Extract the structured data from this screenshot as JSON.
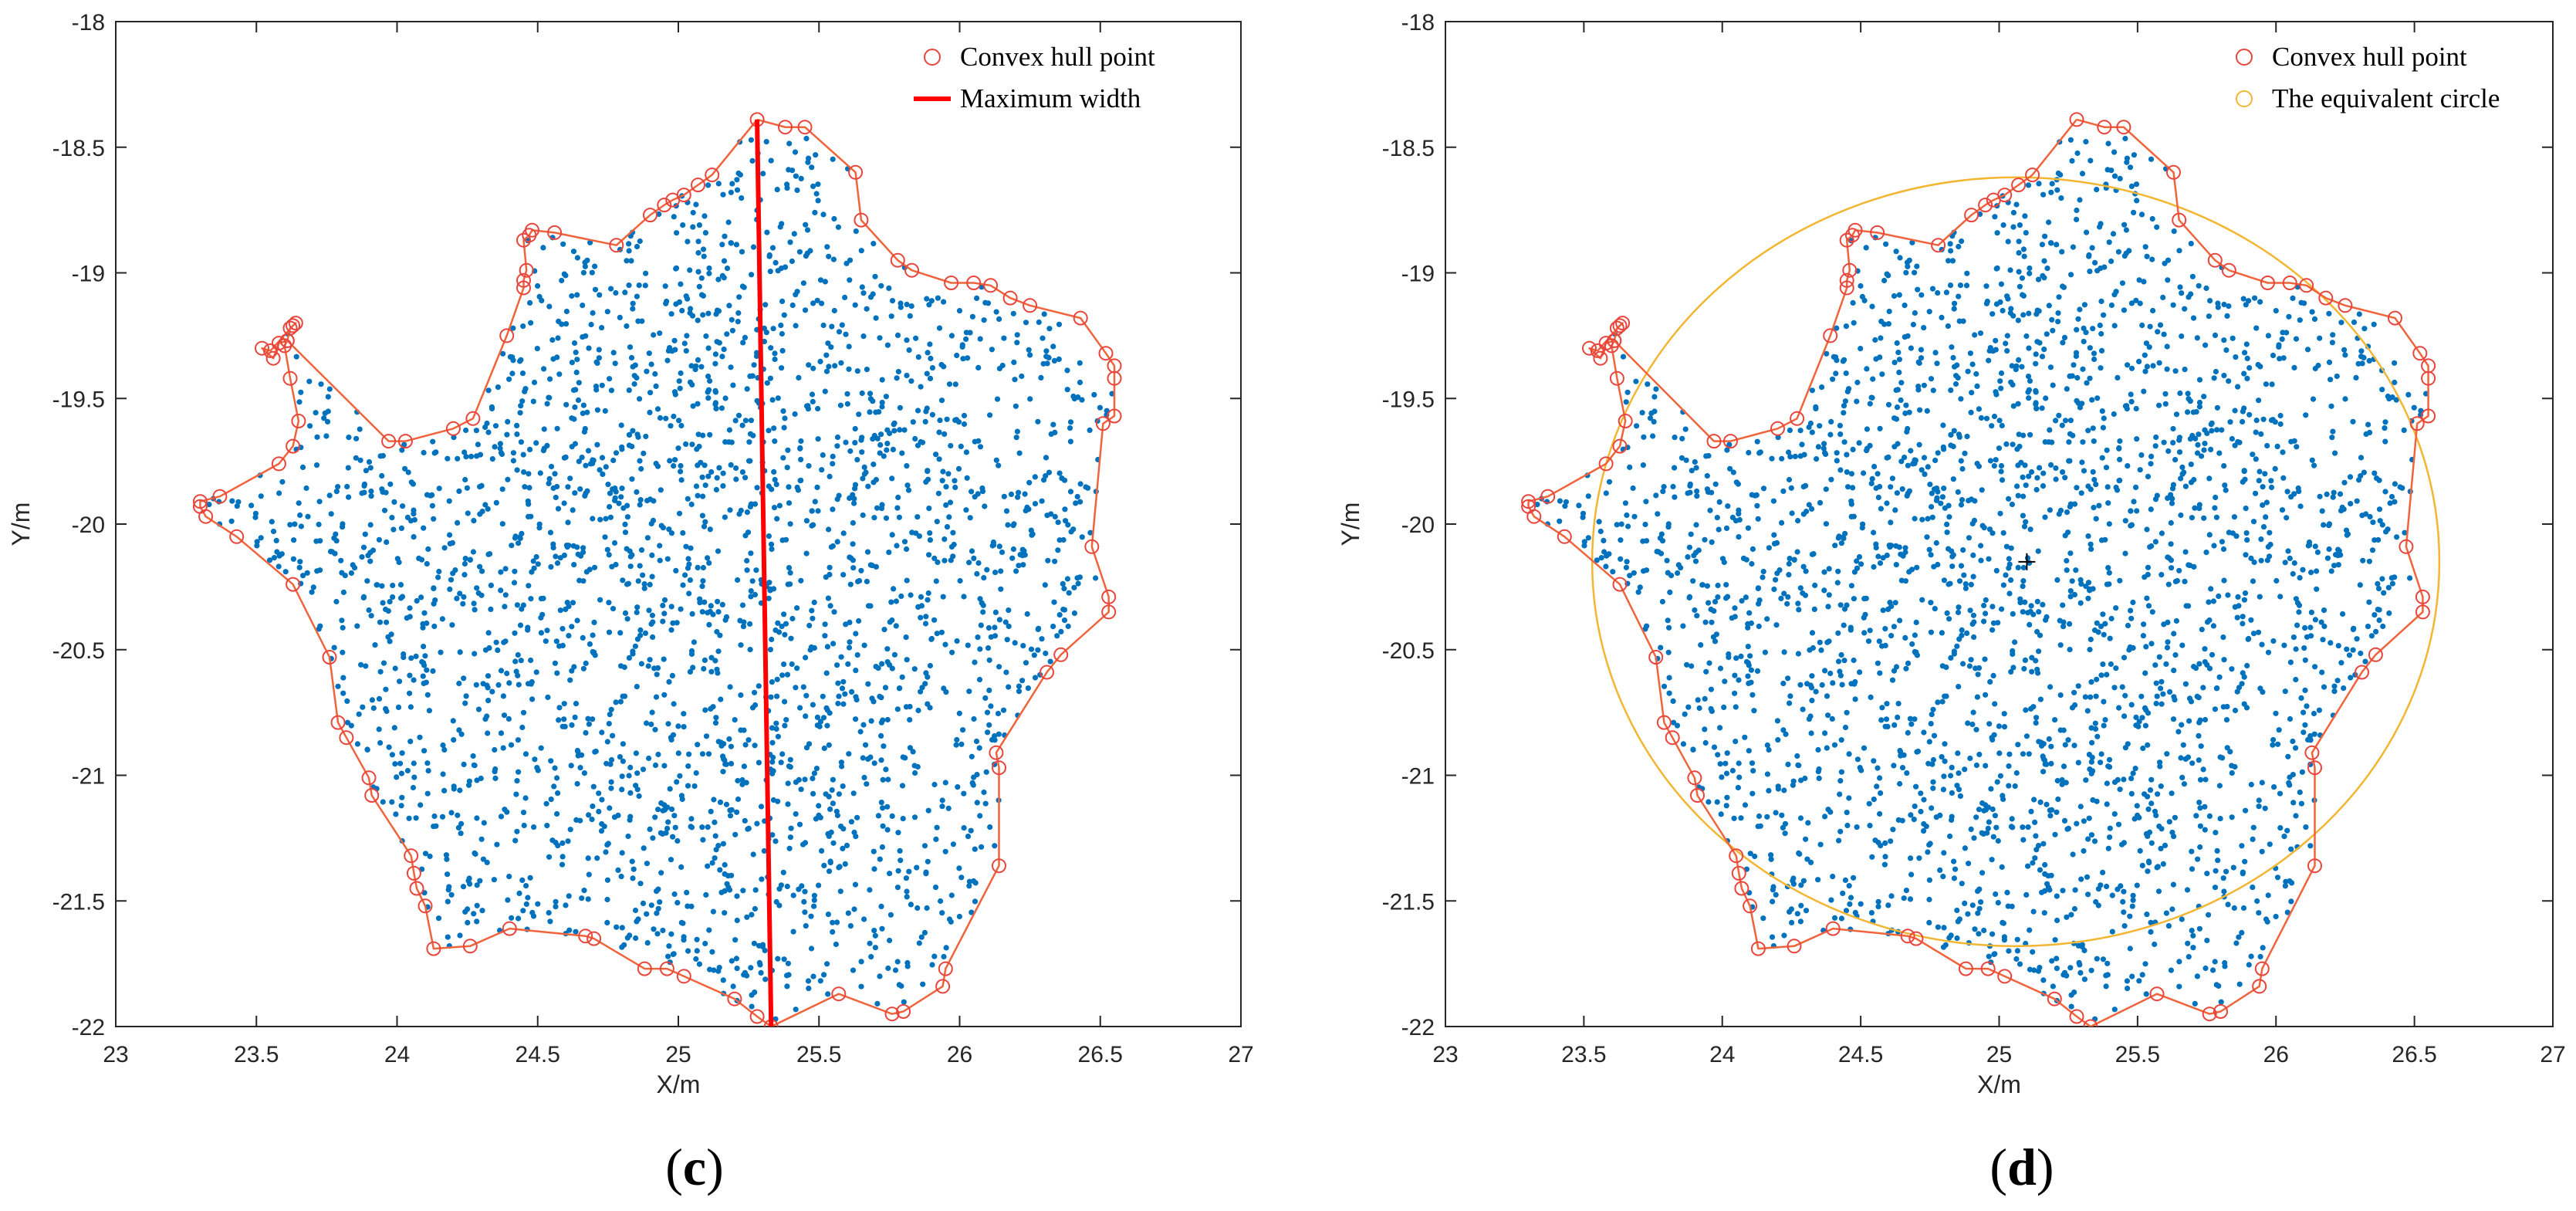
{
  "colors": {
    "points": "#0072BD",
    "hull": "#F0643C",
    "hull_marker": "#E8453C",
    "max_width": "#FF0000",
    "circle": "#F2B632",
    "axis": "#262626"
  },
  "chart_data": [
    {
      "type": "scatter",
      "panel": "c",
      "panel_label": {
        "open": "(",
        "letter": "c",
        "close": ")"
      },
      "xlabel": "X/m",
      "ylabel": "Y/m",
      "xlim": [
        23,
        27
      ],
      "ylim": [
        -22,
        -18
      ],
      "xticks": [
        23,
        23.5,
        24,
        24.5,
        25,
        25.5,
        26,
        26.5,
        27
      ],
      "xtick_labels": [
        "23",
        "23.5",
        "24",
        "24.5",
        "25",
        "25.5",
        "26",
        "26.5",
        "27"
      ],
      "yticks": [
        -18,
        -18.5,
        -19,
        -19.5,
        -20,
        -20.5,
        -21,
        -21.5,
        -22
      ],
      "ytick_labels": [
        "-18",
        "-18.5",
        "-19",
        "-19.5",
        "-20",
        "-20.5",
        "-21",
        "-21.5",
        "-22"
      ],
      "legend_position": "top-right",
      "legend": [
        {
          "label": "Convex hull point",
          "marker": "circle"
        },
        {
          "label": "Maximum width",
          "marker": "line"
        }
      ],
      "max_width_line": {
        "x": [
          25.28,
          25.33
        ],
        "y": [
          -18.39,
          -22.0
        ]
      }
    },
    {
      "type": "scatter",
      "panel": "d",
      "panel_label": {
        "open": "(",
        "letter": "d",
        "close": ")"
      },
      "xlabel": "X/m",
      "ylabel": "Y/m",
      "xlim": [
        23,
        27
      ],
      "ylim": [
        -22,
        -18
      ],
      "xticks": [
        23,
        23.5,
        24,
        24.5,
        25,
        25.5,
        26,
        26.5,
        27
      ],
      "xtick_labels": [
        "23",
        "23.5",
        "24",
        "24.5",
        "25",
        "25.5",
        "26",
        "26.5",
        "27"
      ],
      "yticks": [
        -18,
        -18.5,
        -19,
        -19.5,
        -20,
        -20.5,
        -21,
        -21.5,
        -22
      ],
      "ytick_labels": [
        "-18",
        "-18.5",
        "-19",
        "-19.5",
        "-20",
        "-20.5",
        "-21",
        "-21.5",
        "-22"
      ],
      "legend_position": "top-right",
      "legend": [
        {
          "label": "Convex hull point",
          "marker": "circle"
        },
        {
          "label": "The equivalent circle",
          "marker": "circle"
        }
      ],
      "equivalent_circle": {
        "cx": 25.06,
        "cy": -20.15,
        "r": 1.53
      },
      "center_marker": {
        "x": 25.1,
        "y": -20.15
      }
    }
  ],
  "hull": [
    [
      25.28,
      -18.39
    ],
    [
      25.38,
      -18.42
    ],
    [
      25.45,
      -18.42
    ],
    [
      25.63,
      -18.6
    ],
    [
      25.65,
      -18.79
    ],
    [
      25.78,
      -18.95
    ],
    [
      25.83,
      -18.99
    ],
    [
      25.97,
      -19.04
    ],
    [
      26.05,
      -19.04
    ],
    [
      26.11,
      -19.05
    ],
    [
      26.18,
      -19.1
    ],
    [
      26.25,
      -19.13
    ],
    [
      26.43,
      -19.18
    ],
    [
      26.52,
      -19.32
    ],
    [
      26.55,
      -19.37
    ],
    [
      26.55,
      -19.42
    ],
    [
      26.55,
      -19.57
    ],
    [
      26.51,
      -19.6
    ],
    [
      26.47,
      -20.09
    ],
    [
      26.53,
      -20.29
    ],
    [
      26.53,
      -20.35
    ],
    [
      26.36,
      -20.52
    ],
    [
      26.31,
      -20.59
    ],
    [
      26.13,
      -20.91
    ],
    [
      26.14,
      -20.97
    ],
    [
      26.14,
      -21.36
    ],
    [
      25.95,
      -21.77
    ],
    [
      25.94,
      -21.84
    ],
    [
      25.8,
      -21.94
    ],
    [
      25.76,
      -21.95
    ],
    [
      25.57,
      -21.87
    ],
    [
      25.33,
      -22.0
    ],
    [
      25.28,
      -21.96
    ],
    [
      25.2,
      -21.89
    ],
    [
      25.02,
      -21.8
    ],
    [
      24.96,
      -21.77
    ],
    [
      24.88,
      -21.77
    ],
    [
      24.7,
      -21.65
    ],
    [
      24.67,
      -21.64
    ],
    [
      24.4,
      -21.61
    ],
    [
      24.26,
      -21.68
    ],
    [
      24.13,
      -21.69
    ],
    [
      24.1,
      -21.52
    ],
    [
      24.07,
      -21.45
    ],
    [
      24.06,
      -21.39
    ],
    [
      24.05,
      -21.32
    ],
    [
      23.91,
      -21.08
    ],
    [
      23.9,
      -21.01
    ],
    [
      23.82,
      -20.85
    ],
    [
      23.79,
      -20.79
    ],
    [
      23.76,
      -20.53
    ],
    [
      23.63,
      -20.24
    ],
    [
      23.43,
      -20.05
    ],
    [
      23.32,
      -19.97
    ],
    [
      23.3,
      -19.93
    ],
    [
      23.3,
      -19.91
    ],
    [
      23.37,
      -19.89
    ],
    [
      23.58,
      -19.76
    ],
    [
      23.63,
      -19.69
    ],
    [
      23.65,
      -19.59
    ],
    [
      23.62,
      -19.42
    ],
    [
      23.6,
      -19.29
    ],
    [
      23.61,
      -19.27
    ],
    [
      23.62,
      -19.22
    ],
    [
      23.64,
      -19.2
    ],
    [
      23.63,
      -19.21
    ],
    [
      23.55,
      -19.31
    ],
    [
      23.52,
      -19.3
    ],
    [
      23.56,
      -19.34
    ],
    [
      23.58,
      -19.28
    ],
    [
      23.61,
      -19.27
    ],
    [
      23.97,
      -19.67
    ],
    [
      24.03,
      -19.67
    ],
    [
      24.2,
      -19.62
    ],
    [
      24.27,
      -19.58
    ],
    [
      24.39,
      -19.25
    ],
    [
      24.45,
      -19.06
    ],
    [
      24.45,
      -19.03
    ],
    [
      24.46,
      -18.99
    ],
    [
      24.45,
      -18.87
    ],
    [
      24.47,
      -18.85
    ],
    [
      24.48,
      -18.83
    ],
    [
      24.56,
      -18.84
    ],
    [
      24.78,
      -18.89
    ],
    [
      24.9,
      -18.77
    ],
    [
      24.95,
      -18.73
    ],
    [
      24.98,
      -18.71
    ],
    [
      25.02,
      -18.69
    ],
    [
      25.07,
      -18.65
    ],
    [
      25.12,
      -18.61
    ],
    [
      25.28,
      -18.39
    ]
  ]
}
